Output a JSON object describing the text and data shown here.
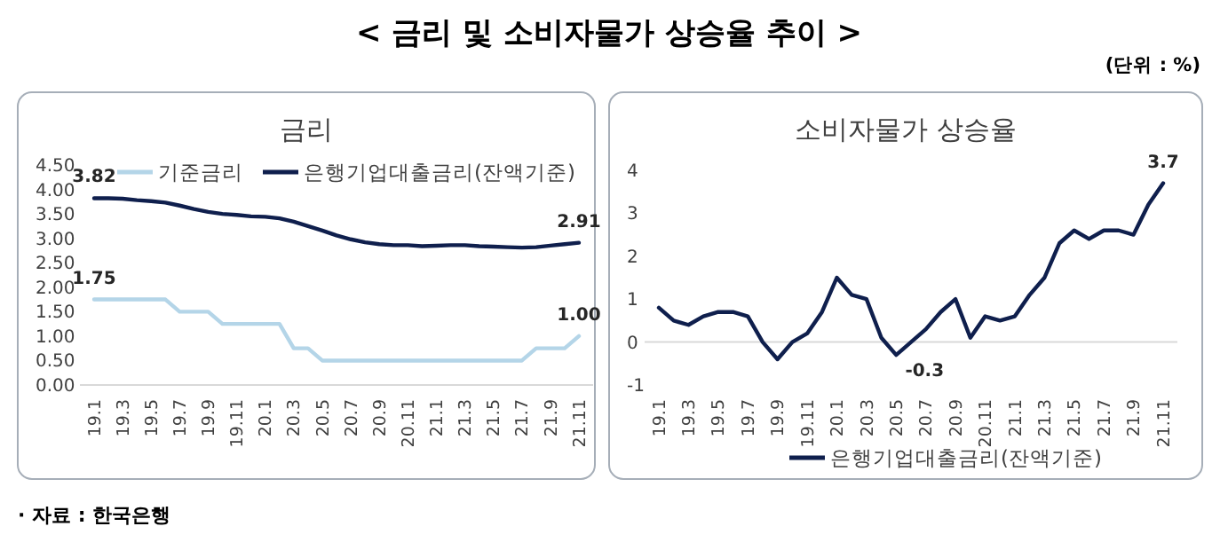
{
  "chart_data": [
    {
      "type": "line",
      "title": "금리",
      "categories": [
        "19.1",
        null,
        "19.3",
        null,
        "19.5",
        null,
        "19.7",
        null,
        "19.9",
        null,
        "19.11",
        null,
        "20.1",
        null,
        "20.3",
        null,
        "20.5",
        null,
        "20.7",
        null,
        "20.9",
        null,
        "20.11",
        null,
        "21.1",
        null,
        "21.3",
        null,
        "21.5",
        null,
        "21.7",
        null,
        "21.9",
        null,
        "21.11"
      ],
      "series": [
        {
          "name": "기준금리",
          "color": "#b4d5e8",
          "values": [
            1.75,
            1.75,
            1.75,
            1.75,
            1.75,
            1.75,
            1.5,
            1.5,
            1.5,
            1.25,
            1.25,
            1.25,
            1.25,
            1.25,
            0.75,
            0.75,
            0.5,
            0.5,
            0.5,
            0.5,
            0.5,
            0.5,
            0.5,
            0.5,
            0.5,
            0.5,
            0.5,
            0.5,
            0.5,
            0.5,
            0.5,
            0.75,
            0.75,
            0.75,
            1.0
          ]
        },
        {
          "name": "은행기업대출금리(잔액기준)",
          "color": "#0f1f4d",
          "values": [
            3.82,
            3.82,
            3.81,
            3.78,
            3.76,
            3.73,
            3.67,
            3.6,
            3.54,
            3.5,
            3.48,
            3.45,
            3.44,
            3.41,
            3.34,
            3.25,
            3.16,
            3.06,
            2.98,
            2.92,
            2.88,
            2.86,
            2.86,
            2.84,
            2.85,
            2.86,
            2.86,
            2.84,
            2.83,
            2.82,
            2.81,
            2.82,
            2.85,
            2.88,
            2.91
          ]
        }
      ],
      "ylim": [
        0,
        4.5
      ],
      "yticks": [
        {
          "value": 0,
          "label": "0.00"
        },
        {
          "value": 0.5,
          "label": "0.50"
        },
        {
          "value": 1,
          "label": "1.00"
        },
        {
          "value": 1.5,
          "label": "1.50"
        },
        {
          "value": 2,
          "label": "2.00"
        },
        {
          "value": 2.5,
          "label": "2.50"
        },
        {
          "value": 3,
          "label": "3.00"
        },
        {
          "value": 3.5,
          "label": "3.50"
        },
        {
          "value": 4,
          "label": "4.00"
        },
        {
          "value": 4.5,
          "label": "4.50"
        }
      ],
      "legend": "top",
      "grid": false,
      "line_style": "solid",
      "marker": "none",
      "annotations": [
        "< 금리 및 소비자물가 상승율 추이 >",
        "(단위 : %)",
        "· 자료 : 한국은행",
        {
          "text": "3.82",
          "x": "19.1",
          "y": 3.82
        },
        {
          "text": "2.91",
          "x": "21.11",
          "y": 2.91
        },
        {
          "text": "1.75",
          "x": "19.1",
          "y": 1.75
        },
        {
          "text": "1.00",
          "x": "21.11",
          "y": 1.0
        }
      ]
    },
    {
      "type": "line",
      "title": "소비자물가 상승율",
      "categories": [
        "19.1",
        null,
        "19.3",
        null,
        "19.5",
        null,
        "19.7",
        null,
        "19.9",
        null,
        "19.11",
        null,
        "20.1",
        null,
        "20.3",
        null,
        "20.5",
        null,
        "20.7",
        null,
        "20.9",
        null,
        "20.11",
        null,
        "21.1",
        null,
        "21.3",
        null,
        "21.5",
        null,
        "21.7",
        null,
        "21.9",
        null,
        "21.11"
      ],
      "series": [
        {
          "name": "은행기업대출금리(잔액기준)",
          "color": "#0f1f4d",
          "values": [
            0.8,
            0.5,
            0.4,
            0.6,
            0.7,
            0.7,
            0.6,
            0.0,
            -0.4,
            0.0,
            0.2,
            0.7,
            1.5,
            1.1,
            1.0,
            0.1,
            -0.3,
            0.0,
            0.3,
            0.7,
            1.0,
            0.1,
            0.6,
            0.5,
            0.6,
            1.1,
            1.5,
            2.3,
            2.6,
            2.4,
            2.6,
            2.6,
            2.5,
            3.2,
            3.7
          ]
        }
      ],
      "ylim": [
        -1,
        4
      ],
      "yticks": [
        -1,
        0,
        1,
        2,
        3,
        4
      ],
      "legend": "bottom",
      "grid": false,
      "line_style": "solid",
      "marker": "none",
      "ref_lines": [
        {
          "axis": "y",
          "value": 0,
          "color": "#d9d9d9"
        }
      ],
      "annotations": [
        {
          "text": "-0.3",
          "x": "20.5",
          "y": -0.3
        },
        {
          "text": "3.7",
          "x": "21.11",
          "y": 3.7
        }
      ]
    }
  ]
}
